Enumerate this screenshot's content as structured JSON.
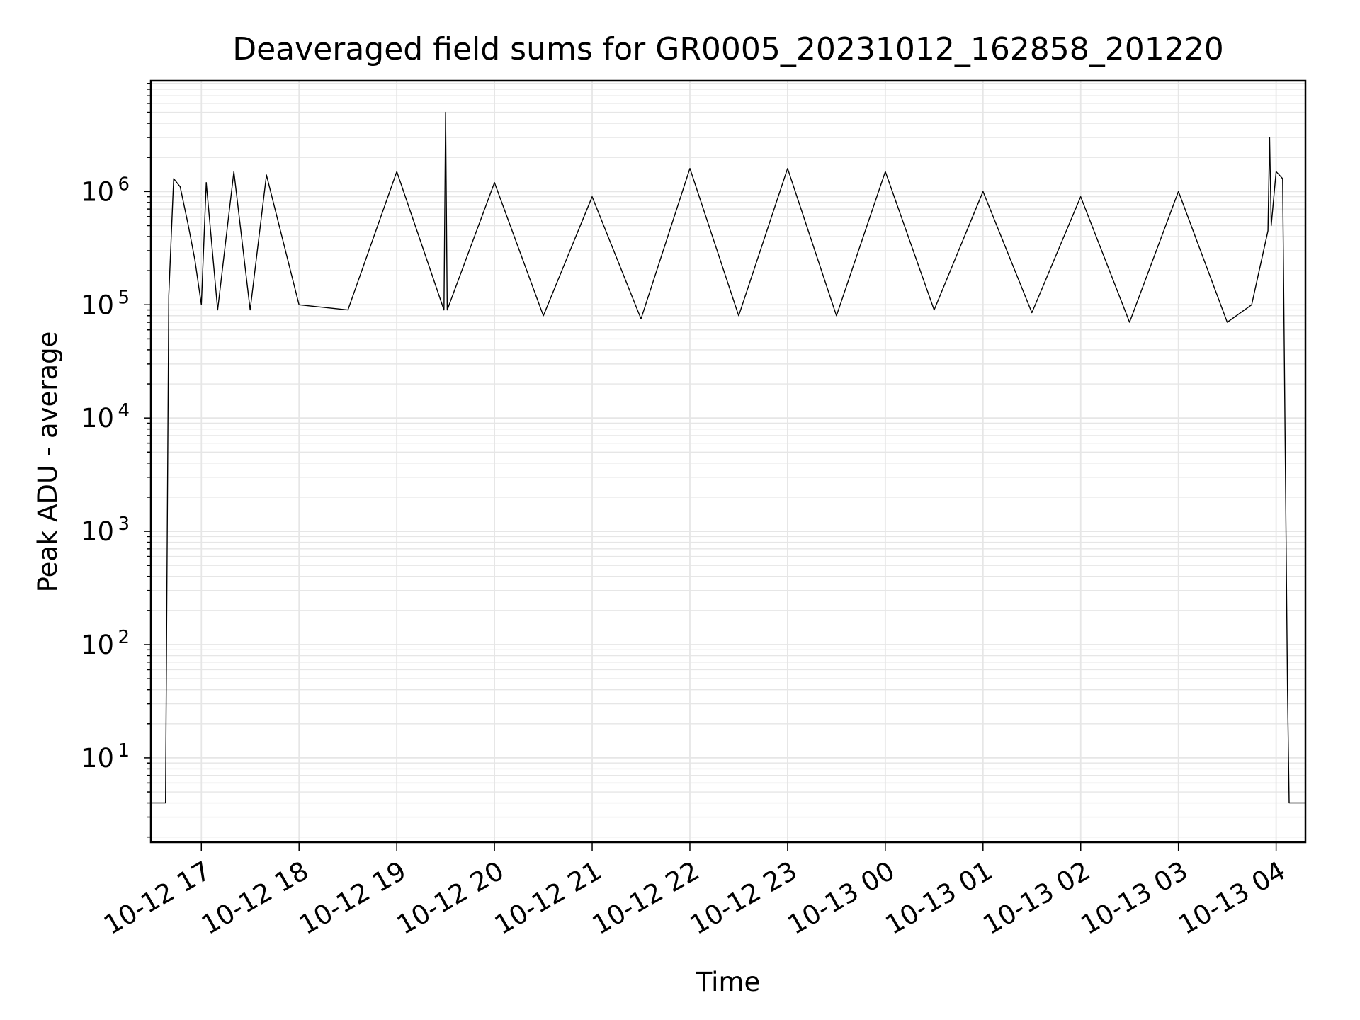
{
  "chart_data": {
    "type": "line",
    "title": "Deaveraged field sums for GR0005_20231012_162858_201220",
    "xlabel": "Time",
    "ylabel": "Peak ADU - average",
    "y_scale": "log",
    "x_tick_labels": [
      "10-12 17",
      "10-12 18",
      "10-12 19",
      "10-12 20",
      "10-12 21",
      "10-12 22",
      "10-12 23",
      "10-13 00",
      "10-13 01",
      "10-13 02",
      "10-13 03",
      "10-13 04"
    ],
    "y_ticks": [
      {
        "value": 10,
        "base": "10",
        "exp": "1"
      },
      {
        "value": 100,
        "base": "10",
        "exp": "2"
      },
      {
        "value": 1000,
        "base": "10",
        "exp": "3"
      },
      {
        "value": 10000,
        "base": "10",
        "exp": "4"
      },
      {
        "value": 100000,
        "base": "10",
        "exp": "5"
      },
      {
        "value": 1000000,
        "base": "10",
        "exp": "6"
      }
    ],
    "xlim": [
      "2023-10-12 16:29",
      "2023-10-13 04:18"
    ],
    "ylim": [
      1.8,
      9500000
    ],
    "grid": true,
    "line_color": "#000000",
    "grid_color": "#e6e6e6",
    "series": [
      {
        "x": [
          "2023-10-12 16:29",
          "2023-10-12 16:30",
          "2023-10-12 16:37",
          "2023-10-12 16:38",
          "2023-10-12 16:40",
          "2023-10-12 16:43",
          "2023-10-12 16:47",
          "2023-10-12 16:52",
          "2023-10-12 16:56",
          "2023-10-12 17:00",
          "2023-10-12 17:03",
          "2023-10-12 17:10",
          "2023-10-12 17:20",
          "2023-10-12 17:30",
          "2023-10-12 17:40",
          "2023-10-12 18:00",
          "2023-10-12 18:30",
          "2023-10-12 19:00",
          "2023-10-12 19:29",
          "2023-10-12 19:30",
          "2023-10-12 19:31",
          "2023-10-12 20:00",
          "2023-10-12 20:30",
          "2023-10-12 21:00",
          "2023-10-12 21:30",
          "2023-10-12 22:00",
          "2023-10-12 22:30",
          "2023-10-12 23:00",
          "2023-10-12 23:30",
          "2023-10-13 00:00",
          "2023-10-13 00:30",
          "2023-10-13 01:00",
          "2023-10-13 01:30",
          "2023-10-13 02:00",
          "2023-10-13 02:30",
          "2023-10-13 03:00",
          "2023-10-13 03:30",
          "2023-10-13 03:45",
          "2023-10-13 03:55",
          "2023-10-13 03:56",
          "2023-10-13 03:57",
          "2023-10-13 04:00",
          "2023-10-13 04:04",
          "2023-10-13 04:07",
          "2023-10-13 04:08",
          "2023-10-13 04:10",
          "2023-10-13 04:18"
        ],
        "y": [
          4,
          4,
          4,
          4,
          120000,
          1300000,
          1100000,
          500000,
          250000,
          100000,
          1200000,
          90000,
          1500000,
          90000,
          1400000,
          100000,
          90000,
          1500000,
          90000,
          5000000,
          90000,
          1200000,
          80000,
          900000,
          75000,
          1600000,
          80000,
          1600000,
          80000,
          1500000,
          90000,
          1000000,
          85000,
          900000,
          70000,
          1000000,
          70000,
          100000,
          450000,
          3000000,
          500000,
          1500000,
          1300000,
          40,
          4,
          4,
          4
        ]
      }
    ]
  }
}
